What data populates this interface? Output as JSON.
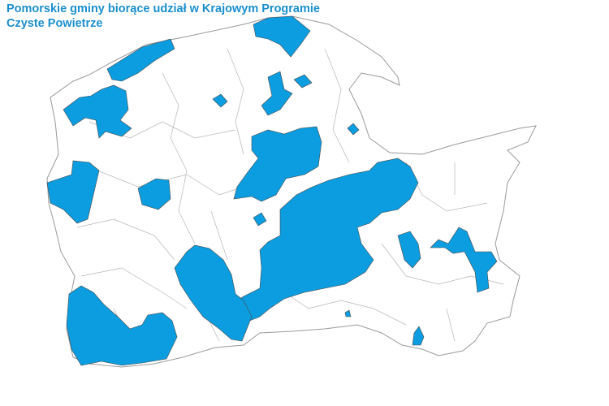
{
  "title": {
    "line1": "Pomorskie gminy biorące udział w Krajowym Programie",
    "line2": "Czyste Powietrze"
  },
  "map": {
    "region": "Pomorskie",
    "participating_color": "#0b9de0",
    "non_participating_color": "#ffffff",
    "boundary_color": "#9a9a9a"
  }
}
